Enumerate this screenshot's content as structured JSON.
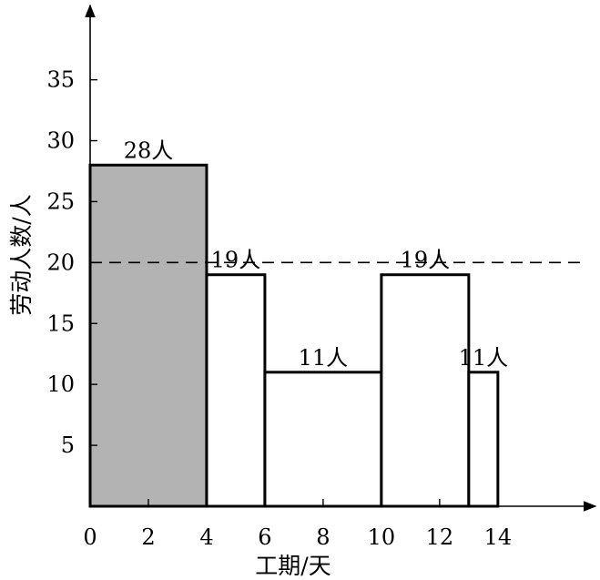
{
  "chart_data": {
    "type": "bar",
    "xlabel": "工期/天",
    "ylabel": "劳动人数/人",
    "x_ticks": [
      "0",
      "2",
      "4",
      "6",
      "8",
      "10",
      "12",
      "14"
    ],
    "y_ticks": [
      "5",
      "10",
      "15",
      "20",
      "25",
      "30",
      "35"
    ],
    "xlim": [
      0,
      17.1
    ],
    "ylim": [
      0,
      40.8
    ],
    "reference_line": {
      "y": 20,
      "style": "dashed"
    },
    "bars": [
      {
        "start": 0,
        "end": 4,
        "value": 28,
        "label": "28人",
        "color": "#b3b3b3"
      },
      {
        "start": 4,
        "end": 6,
        "value": 19,
        "label": "19人",
        "color": "#ffffff"
      },
      {
        "start": 6,
        "end": 10,
        "value": 11,
        "label": "11人",
        "color": "#ffffff"
      },
      {
        "start": 10,
        "end": 13,
        "value": 19,
        "label": "19人",
        "color": "#ffffff"
      },
      {
        "start": 13,
        "end": 14,
        "value": 11,
        "label": "11人",
        "color": "#ffffff"
      }
    ],
    "grid": false,
    "legend": "none"
  }
}
